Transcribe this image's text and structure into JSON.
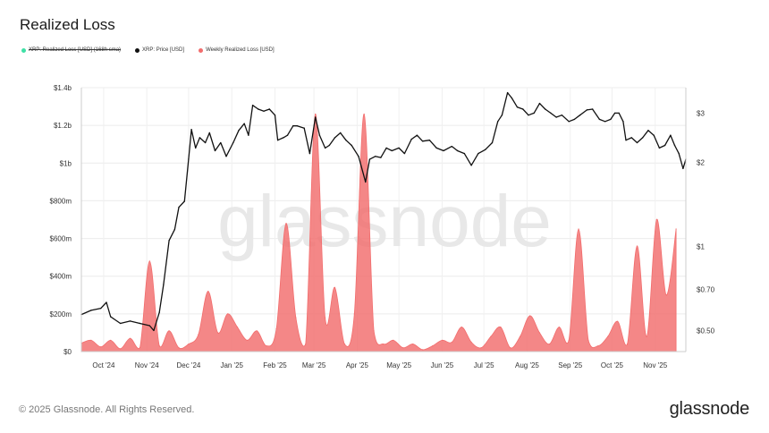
{
  "header": {
    "title": "Realized Loss"
  },
  "legend": [
    {
      "label": "XRP: Realized Loss [USD] (168h sma)",
      "color": "#3fe0a6",
      "disabled": true
    },
    {
      "label": "XRP: Price [USD]",
      "color": "#111111",
      "disabled": false
    },
    {
      "label": "Weekly Realized Loss [USD]",
      "color": "#f26d6d",
      "disabled": false
    }
  ],
  "footer": {
    "copyright": "© 2025 Glassnode. All Rights Reserved.",
    "logo": "glassnode",
    "watermark": "glassnode"
  },
  "chart_data": {
    "type": "area",
    "title": "Realized Loss",
    "x_labels": [
      "Oct '24",
      "Nov '24",
      "Dec '24",
      "Jan '25",
      "Feb '25",
      "Mar '25",
      "Apr '25",
      "May '25",
      "Jun '25",
      "Jul '25",
      "Aug '25",
      "Sep '25",
      "Oct '25",
      "Nov '25"
    ],
    "x_start": "2024-09-15",
    "x_end": "2025-11-23",
    "y_left": {
      "ticks": [
        "$0",
        "$200m",
        "$400m",
        "$600m",
        "$800m",
        "$1b",
        "$1.2b",
        "$1.4b"
      ],
      "range": [
        0,
        1400000000
      ]
    },
    "y_right": {
      "scale": "log",
      "ticks": [
        "$0.50",
        "$0.70",
        "$1",
        "$2",
        "$3"
      ],
      "tick_values": [
        0.5,
        0.7,
        1,
        2,
        3
      ],
      "range": [
        0.42,
        3.7
      ]
    },
    "grid": true,
    "series": [
      {
        "name": "Weekly Realized Loss [USD]",
        "color": "#f26d6d",
        "axis": "left",
        "points": [
          [
            "2024-09-15",
            45000000
          ],
          [
            "2024-09-22",
            60000000
          ],
          [
            "2024-09-29",
            25000000
          ],
          [
            "2024-10-06",
            60000000
          ],
          [
            "2024-10-13",
            15000000
          ],
          [
            "2024-10-20",
            70000000
          ],
          [
            "2024-10-27",
            20000000
          ],
          [
            "2024-11-03",
            480000000
          ],
          [
            "2024-11-10",
            30000000
          ],
          [
            "2024-11-17",
            110000000
          ],
          [
            "2024-11-24",
            20000000
          ],
          [
            "2024-12-01",
            40000000
          ],
          [
            "2024-12-08",
            90000000
          ],
          [
            "2024-12-15",
            320000000
          ],
          [
            "2024-12-22",
            100000000
          ],
          [
            "2024-12-29",
            200000000
          ],
          [
            "2025-01-05",
            130000000
          ],
          [
            "2025-01-12",
            60000000
          ],
          [
            "2025-01-19",
            110000000
          ],
          [
            "2025-01-26",
            30000000
          ],
          [
            "2025-02-02",
            120000000
          ],
          [
            "2025-02-09",
            680000000
          ],
          [
            "2025-02-16",
            180000000
          ],
          [
            "2025-02-23",
            40000000
          ],
          [
            "2025-03-02",
            1260000000
          ],
          [
            "2025-03-09",
            180000000
          ],
          [
            "2025-03-16",
            340000000
          ],
          [
            "2025-03-23",
            40000000
          ],
          [
            "2025-03-30",
            200000000
          ],
          [
            "2025-04-06",
            1260000000
          ],
          [
            "2025-04-13",
            110000000
          ],
          [
            "2025-04-20",
            40000000
          ],
          [
            "2025-04-27",
            60000000
          ],
          [
            "2025-05-04",
            20000000
          ],
          [
            "2025-05-11",
            40000000
          ],
          [
            "2025-05-18",
            10000000
          ],
          [
            "2025-05-25",
            30000000
          ],
          [
            "2025-06-01",
            60000000
          ],
          [
            "2025-06-08",
            50000000
          ],
          [
            "2025-06-15",
            130000000
          ],
          [
            "2025-06-22",
            50000000
          ],
          [
            "2025-06-29",
            20000000
          ],
          [
            "2025-07-06",
            80000000
          ],
          [
            "2025-07-13",
            130000000
          ],
          [
            "2025-07-20",
            20000000
          ],
          [
            "2025-07-27",
            80000000
          ],
          [
            "2025-08-03",
            190000000
          ],
          [
            "2025-08-10",
            100000000
          ],
          [
            "2025-08-17",
            40000000
          ],
          [
            "2025-08-24",
            130000000
          ],
          [
            "2025-08-31",
            60000000
          ],
          [
            "2025-09-07",
            650000000
          ],
          [
            "2025-09-14",
            60000000
          ],
          [
            "2025-09-21",
            30000000
          ],
          [
            "2025-09-28",
            80000000
          ],
          [
            "2025-10-05",
            160000000
          ],
          [
            "2025-10-12",
            40000000
          ],
          [
            "2025-10-19",
            560000000
          ],
          [
            "2025-10-26",
            80000000
          ],
          [
            "2025-11-02",
            700000000
          ],
          [
            "2025-11-09",
            300000000
          ],
          [
            "2025-11-16",
            650000000
          ]
        ]
      },
      {
        "name": "XRP: Price [USD]",
        "color": "#111111",
        "axis": "right",
        "points": [
          [
            "2024-09-15",
            0.57
          ],
          [
            "2024-09-22",
            0.59
          ],
          [
            "2024-09-29",
            0.6
          ],
          [
            "2024-10-03",
            0.63
          ],
          [
            "2024-10-06",
            0.56
          ],
          [
            "2024-10-13",
            0.53
          ],
          [
            "2024-10-20",
            0.54
          ],
          [
            "2024-10-27",
            0.53
          ],
          [
            "2024-11-03",
            0.52
          ],
          [
            "2024-11-06",
            0.5
          ],
          [
            "2024-11-10",
            0.58
          ],
          [
            "2024-11-13",
            0.73
          ],
          [
            "2024-11-17",
            1.05
          ],
          [
            "2024-11-21",
            1.15
          ],
          [
            "2024-11-24",
            1.38
          ],
          [
            "2024-11-28",
            1.45
          ],
          [
            "2024-12-01",
            2.05
          ],
          [
            "2024-12-03",
            2.62
          ],
          [
            "2024-12-06",
            2.25
          ],
          [
            "2024-12-09",
            2.45
          ],
          [
            "2024-12-13",
            2.35
          ],
          [
            "2024-12-16",
            2.55
          ],
          [
            "2024-12-20",
            2.2
          ],
          [
            "2024-12-24",
            2.35
          ],
          [
            "2024-12-28",
            2.1
          ],
          [
            "2025-01-02",
            2.35
          ],
          [
            "2025-01-06",
            2.6
          ],
          [
            "2025-01-10",
            2.75
          ],
          [
            "2025-01-13",
            2.5
          ],
          [
            "2025-01-16",
            3.2
          ],
          [
            "2025-01-20",
            3.1
          ],
          [
            "2025-01-24",
            3.05
          ],
          [
            "2025-01-28",
            3.1
          ],
          [
            "2025-02-01",
            2.95
          ],
          [
            "2025-02-03",
            2.4
          ],
          [
            "2025-02-07",
            2.45
          ],
          [
            "2025-02-10",
            2.5
          ],
          [
            "2025-02-14",
            2.7
          ],
          [
            "2025-02-17",
            2.7
          ],
          [
            "2025-02-22",
            2.65
          ],
          [
            "2025-02-26",
            2.15
          ],
          [
            "2025-03-02",
            2.9
          ],
          [
            "2025-03-05",
            2.5
          ],
          [
            "2025-03-09",
            2.25
          ],
          [
            "2025-03-12",
            2.3
          ],
          [
            "2025-03-16",
            2.45
          ],
          [
            "2025-03-20",
            2.55
          ],
          [
            "2025-03-24",
            2.4
          ],
          [
            "2025-03-28",
            2.3
          ],
          [
            "2025-04-02",
            2.1
          ],
          [
            "2025-04-07",
            1.7
          ],
          [
            "2025-04-10",
            2.05
          ],
          [
            "2025-04-14",
            2.1
          ],
          [
            "2025-04-18",
            2.08
          ],
          [
            "2025-04-22",
            2.25
          ],
          [
            "2025-04-26",
            2.2
          ],
          [
            "2025-05-01",
            2.25
          ],
          [
            "2025-05-05",
            2.15
          ],
          [
            "2025-05-10",
            2.42
          ],
          [
            "2025-05-14",
            2.5
          ],
          [
            "2025-05-18",
            2.38
          ],
          [
            "2025-05-23",
            2.4
          ],
          [
            "2025-05-28",
            2.25
          ],
          [
            "2025-06-02",
            2.2
          ],
          [
            "2025-06-08",
            2.28
          ],
          [
            "2025-06-12",
            2.2
          ],
          [
            "2025-06-17",
            2.15
          ],
          [
            "2025-06-22",
            1.95
          ],
          [
            "2025-06-27",
            2.15
          ],
          [
            "2025-07-02",
            2.22
          ],
          [
            "2025-07-07",
            2.35
          ],
          [
            "2025-07-11",
            2.8
          ],
          [
            "2025-07-14",
            2.95
          ],
          [
            "2025-07-18",
            3.55
          ],
          [
            "2025-07-21",
            3.4
          ],
          [
            "2025-07-25",
            3.15
          ],
          [
            "2025-07-29",
            3.1
          ],
          [
            "2025-08-02",
            2.95
          ],
          [
            "2025-08-06",
            3.0
          ],
          [
            "2025-08-10",
            3.25
          ],
          [
            "2025-08-14",
            3.1
          ],
          [
            "2025-08-18",
            3.0
          ],
          [
            "2025-08-22",
            2.9
          ],
          [
            "2025-08-26",
            2.95
          ],
          [
            "2025-08-31",
            2.8
          ],
          [
            "2025-09-04",
            2.85
          ],
          [
            "2025-09-08",
            2.95
          ],
          [
            "2025-09-13",
            3.08
          ],
          [
            "2025-09-17",
            3.1
          ],
          [
            "2025-09-22",
            2.85
          ],
          [
            "2025-09-26",
            2.8
          ],
          [
            "2025-09-30",
            2.85
          ],
          [
            "2025-10-03",
            3.0
          ],
          [
            "2025-10-06",
            3.0
          ],
          [
            "2025-10-09",
            2.8
          ],
          [
            "2025-10-11",
            2.4
          ],
          [
            "2025-10-15",
            2.45
          ],
          [
            "2025-10-19",
            2.35
          ],
          [
            "2025-10-23",
            2.45
          ],
          [
            "2025-10-27",
            2.6
          ],
          [
            "2025-10-31",
            2.5
          ],
          [
            "2025-11-04",
            2.25
          ],
          [
            "2025-11-08",
            2.3
          ],
          [
            "2025-11-12",
            2.5
          ],
          [
            "2025-11-15",
            2.3
          ],
          [
            "2025-11-18",
            2.15
          ],
          [
            "2025-11-21",
            1.9
          ],
          [
            "2025-11-23",
            2.05
          ]
        ]
      }
    ]
  }
}
